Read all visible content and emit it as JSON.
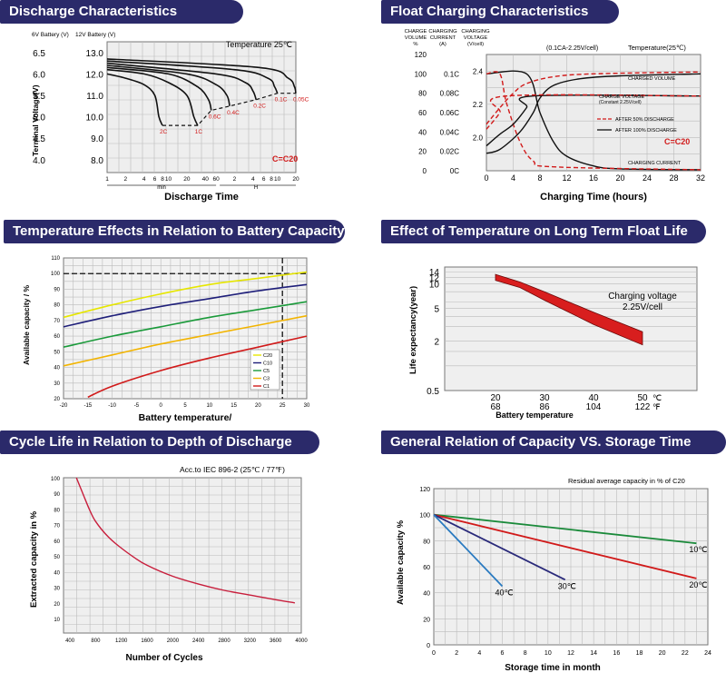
{
  "panels": {
    "discharge": {
      "title": "Discharge Characteristics"
    },
    "float": {
      "title": "Float Charging Characteristics"
    },
    "temp_cap": {
      "title": "Temperature Effects in Relation to Battery Capacity"
    },
    "temp_life": {
      "title": "Effect of Temperature on Long Term Float Life"
    },
    "cycle": {
      "title": "Cycle Life in Relation to Depth of Discharge"
    },
    "storage": {
      "title": "General Relation of Capacity VS. Storage Time"
    }
  },
  "chart_data": [
    {
      "id": "discharge",
      "type": "line",
      "title": "Discharge Characteristics",
      "annotation": "Temperature 25℃",
      "formula": "C=C20",
      "axis_6v_label": "6V Battery (V)",
      "axis_12v_label": "12V Battery (V)",
      "ylabel": "Terminal Voltage(V)",
      "xlabel": "Discharge Time",
      "y_ticks_6v": [
        "6.5",
        "6.0",
        "5.5",
        "5.0",
        "4.5",
        "4.0"
      ],
      "y_ticks_12v": [
        "13.0",
        "12.0",
        "11.0",
        "10.0",
        "9.0",
        "8.0"
      ],
      "x_ticks": [
        "1",
        "2",
        "4",
        "6",
        "8",
        "10",
        "20",
        "40",
        "60",
        "2",
        "4",
        "6",
        "8",
        "10",
        "20"
      ],
      "unit_min": "min",
      "unit_h": "H",
      "grid": true,
      "series": [
        {
          "name": "2C",
          "values": [
            [
              1,
              12.0
            ],
            [
              2,
              11.8
            ],
            [
              4,
              11.5
            ],
            [
              6,
              11.0
            ],
            [
              7,
              10.0
            ],
            [
              8,
              9.6
            ]
          ]
        },
        {
          "name": "1C",
          "values": [
            [
              1,
              12.2
            ],
            [
              4,
              12.0
            ],
            [
              10,
              11.6
            ],
            [
              20,
              11.0
            ],
            [
              26,
              10.0
            ],
            [
              30,
              9.6
            ]
          ]
        },
        {
          "name": "0.6C",
          "values": [
            [
              1,
              12.3
            ],
            [
              10,
              12.0
            ],
            [
              30,
              11.4
            ],
            [
              45,
              10.8
            ],
            [
              50,
              10.3
            ]
          ]
        },
        {
          "name": "0.4C",
          "values": [
            [
              1,
              12.4
            ],
            [
              20,
              12.0
            ],
            [
              60,
              11.5
            ],
            [
              90,
              11.0
            ],
            [
              100,
              10.5
            ]
          ]
        },
        {
          "name": "0.2C",
          "values": [
            [
              1,
              12.5
            ],
            [
              60,
              12.0
            ],
            [
              180,
              11.6
            ],
            [
              240,
              11.2
            ],
            [
              270,
              10.8
            ]
          ]
        },
        {
          "name": "0.1C",
          "values": [
            [
              1,
              12.6
            ],
            [
              120,
              12.2
            ],
            [
              420,
              11.8
            ],
            [
              540,
              11.4
            ],
            [
              600,
              11.1
            ]
          ]
        },
        {
          "name": "0.05C",
          "values": [
            [
              1,
              12.7
            ],
            [
              300,
              12.3
            ],
            [
              900,
              11.8
            ],
            [
              1140,
              11.4
            ],
            [
              1200,
              11.1
            ]
          ]
        }
      ]
    },
    {
      "id": "float",
      "type": "line",
      "title": "Float Charging Characteristics",
      "header_left_1": "CHARGE VOLUME %",
      "header_left_2": "CHARGING CURRENT (A)",
      "header_left_3": "CHARGING VOLTAGE (V/cell)",
      "header_right_1": "(0.1CA-2.25V/cell)",
      "header_right_2": "Temperature(25℃)",
      "xlabel": "Charging Time (hours)",
      "x_ticks": [
        "0",
        "4",
        "8",
        "12",
        "16",
        "20",
        "24",
        "28",
        "32"
      ],
      "y_volume_ticks": [
        "120",
        "100",
        "80",
        "60",
        "40",
        "20",
        "0"
      ],
      "y_current_ticks": [
        "0.1C",
        "0.08C",
        "0.06C",
        "0.04C",
        "0.02C",
        "0C"
      ],
      "y_voltage_ticks": [
        "2.4",
        "2.2",
        "2.0"
      ],
      "label_volume": "CHARGED VOLUME",
      "label_voltage": "CHARGE VOLTAGE (Constant 2.25V/cell)",
      "label_current": "CHARGING CURRENT",
      "legend": [
        "AFTER 50% DISCHARGE",
        "AFTER 100% DISCHARGE"
      ],
      "formula": "C=C20",
      "series": [
        {
          "name": "AFTER 100% DISCHARGE",
          "kind": "volume",
          "values": [
            [
              0,
              18
            ],
            [
              2,
              22
            ],
            [
              5,
              40
            ],
            [
              7,
              60
            ],
            [
              8,
              75
            ],
            [
              10,
              88
            ],
            [
              14,
              95
            ],
            [
              20,
              98
            ],
            [
              32,
              100
            ]
          ]
        },
        {
          "name": "AFTER 50% DISCHARGE",
          "kind": "volume",
          "values": [
            [
              0,
              48
            ],
            [
              2,
              65
            ],
            [
              4,
              80
            ],
            [
              6,
              90
            ],
            [
              10,
              97
            ],
            [
              16,
              100
            ],
            [
              32,
              102
            ]
          ]
        },
        {
          "name": "AFTER 100% DISCHARGE",
          "kind": "current",
          "values": [
            [
              0,
              0.1
            ],
            [
              6,
              0.1
            ],
            [
              8,
              0.06
            ],
            [
              10,
              0.03
            ],
            [
              12,
              0.015
            ],
            [
              16,
              0.005
            ],
            [
              20,
              0.002
            ],
            [
              32,
              0.001
            ]
          ]
        },
        {
          "name": "AFTER 50% DISCHARGE",
          "kind": "current",
          "values": [
            [
              0,
              0.1
            ],
            [
              2,
              0.1
            ],
            [
              3,
              0.07
            ],
            [
              5,
              0.03
            ],
            [
              7,
              0.01
            ],
            [
              10,
              0.004
            ],
            [
              32,
              0.001
            ]
          ]
        },
        {
          "name": "AFTER 100% DISCHARGE",
          "kind": "voltage",
          "values": [
            [
              0,
              1.95
            ],
            [
              2,
              2.02
            ],
            [
              4,
              2.08
            ],
            [
              6,
              2.18
            ],
            [
              7,
              2.25
            ],
            [
              32,
              2.25
            ]
          ]
        },
        {
          "name": "AFTER 50% DISCHARGE",
          "kind": "voltage",
          "values": [
            [
              0,
              2.05
            ],
            [
              2,
              2.15
            ],
            [
              3,
              2.25
            ],
            [
              32,
              2.25
            ]
          ]
        }
      ]
    },
    {
      "id": "temp_cap",
      "type": "line",
      "title": "Temperature Effects in Relation to Battery Capacity",
      "ylabel": "Available capacity / %",
      "xlabel": "Battery temperature/",
      "x_ticks": [
        "-20",
        "-15",
        "-10",
        "-5",
        "0",
        "5",
        "10",
        "15",
        "20",
        "25",
        "30"
      ],
      "y_ticks": [
        "110",
        "100",
        "90",
        "80",
        "70",
        "60",
        "50",
        "40",
        "30",
        "20"
      ],
      "xlim": [
        -20,
        30
      ],
      "ylim": [
        20,
        110
      ],
      "legend": [
        "C20",
        "C10",
        "C5",
        "C3",
        "C1"
      ],
      "series": [
        {
          "name": "C20",
          "color": "#e6e600",
          "values": [
            [
              -20,
              72
            ],
            [
              -10,
              80
            ],
            [
              0,
              87
            ],
            [
              10,
              93
            ],
            [
              20,
              97
            ],
            [
              30,
              101
            ]
          ]
        },
        {
          "name": "C10",
          "color": "#1f1f7a",
          "values": [
            [
              -20,
              66
            ],
            [
              -10,
              73
            ],
            [
              0,
              79
            ],
            [
              10,
              84
            ],
            [
              20,
              89
            ],
            [
              30,
              93
            ]
          ]
        },
        {
          "name": "C5",
          "color": "#1a9a3a",
          "values": [
            [
              -20,
              53
            ],
            [
              -10,
              60
            ],
            [
              0,
              66
            ],
            [
              10,
              72
            ],
            [
              20,
              77
            ],
            [
              30,
              82
            ]
          ]
        },
        {
          "name": "C3",
          "color": "#f2b400",
          "values": [
            [
              -20,
              41
            ],
            [
              -10,
              48
            ],
            [
              0,
              55
            ],
            [
              10,
              61
            ],
            [
              20,
              67
            ],
            [
              30,
              73
            ]
          ]
        },
        {
          "name": "C1",
          "color": "#d11a1a",
          "values": [
            [
              -15,
              21
            ],
            [
              -10,
              28
            ],
            [
              0,
              38
            ],
            [
              10,
              46
            ],
            [
              20,
              53
            ],
            [
              30,
              60
            ]
          ]
        }
      ]
    },
    {
      "id": "temp_life",
      "type": "area",
      "title": "Effect of Temperature on Long Term Float Life",
      "ylabel": "Life expectancy(year)",
      "xlabel": "Battery temperature",
      "annotation_1": "Charging voltage",
      "annotation_2": "2.25V/cell",
      "y_ticks": [
        "14",
        "12",
        "10",
        "5",
        "2",
        "0.5"
      ],
      "x_ticks_c": [
        "20",
        "30",
        "40",
        "50"
      ],
      "x_ticks_f": [
        "68",
        "86",
        "104",
        "122"
      ],
      "unit_c": "℃",
      "unit_f": "℉",
      "upper": [
        [
          20,
          13
        ],
        [
          25,
          10.5
        ],
        [
          30,
          8
        ],
        [
          40,
          4.5
        ],
        [
          50,
          2.6
        ]
      ],
      "lower": [
        [
          20,
          11
        ],
        [
          25,
          9
        ],
        [
          30,
          6.3
        ],
        [
          40,
          3.2
        ],
        [
          50,
          1.8
        ]
      ]
    },
    {
      "id": "cycle",
      "type": "line",
      "title": "Cycle Life in Relation to Depth of Discharge",
      "annotation": "Acc.to IEC 896-2 (25℃ / 77℉)",
      "ylabel": "Extracted capacity in %",
      "xlabel": "Number of Cycles",
      "x_ticks": [
        "400",
        "800",
        "1200",
        "1600",
        "2000",
        "2400",
        "2800",
        "3200",
        "3600",
        "4000"
      ],
      "y_ticks": [
        "100",
        "90",
        "80",
        "70",
        "60",
        "50",
        "40",
        "30",
        "20",
        "10"
      ],
      "xlim": [
        400,
        4000
      ],
      "ylim": [
        10,
        100
      ],
      "series": [
        {
          "name": "",
          "values": [
            [
              500,
              100
            ],
            [
              600,
              90
            ],
            [
              700,
              80
            ],
            [
              800,
              72
            ],
            [
              1000,
              62
            ],
            [
              1200,
              55
            ],
            [
              1400,
              49
            ],
            [
              1600,
              44
            ],
            [
              2000,
              37
            ],
            [
              2400,
              32
            ],
            [
              2800,
              28
            ],
            [
              3200,
              25
            ],
            [
              3600,
              22
            ],
            [
              3900,
              20
            ]
          ]
        }
      ]
    },
    {
      "id": "storage",
      "type": "line",
      "title": "General Relation of Capacity VS. Storage Time",
      "annotation": "Residual average capacity in % of C20",
      "ylabel": "Available capacity %",
      "xlabel": "Storage time in month",
      "x_ticks": [
        "0",
        "2",
        "4",
        "6",
        "8",
        "10",
        "12",
        "14",
        "16",
        "18",
        "20",
        "22",
        "24"
      ],
      "y_ticks": [
        "120",
        "100",
        "80",
        "60",
        "40",
        "20",
        "0"
      ],
      "xlim": [
        0,
        24
      ],
      "ylim": [
        0,
        120
      ],
      "series": [
        {
          "name": "10℃",
          "color": "#1a8a3a",
          "values": [
            [
              0,
              100
            ],
            [
              23,
              78
            ]
          ]
        },
        {
          "name": "20℃",
          "color": "#d11a1a",
          "values": [
            [
              0,
              100
            ],
            [
              23,
              51
            ]
          ]
        },
        {
          "name": "30℃",
          "color": "#2a2a7a",
          "values": [
            [
              0,
              100
            ],
            [
              11.5,
              50
            ]
          ]
        },
        {
          "name": "40℃",
          "color": "#2a7ac0",
          "values": [
            [
              0,
              100
            ],
            [
              6,
              45
            ]
          ]
        }
      ]
    }
  ]
}
